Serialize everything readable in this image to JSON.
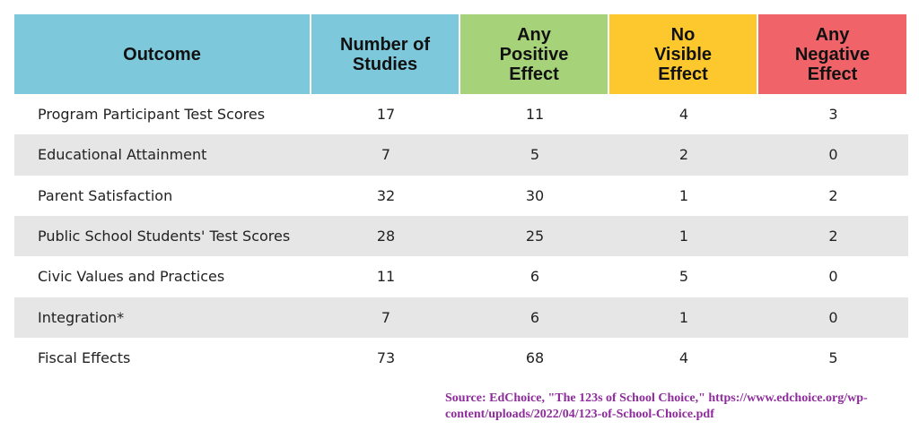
{
  "table": {
    "header": [
      [
        "Outcome"
      ],
      [
        "Number of",
        "Studies"
      ],
      [
        "Any",
        "Positive",
        "Effect"
      ],
      [
        "No",
        "Visible",
        "Effect"
      ],
      [
        "Any",
        "Negative",
        "Effect"
      ]
    ],
    "rows": [
      [
        "Program Participant Test Scores",
        17,
        11,
        4,
        3
      ],
      [
        "Educational Attainment",
        7,
        5,
        2,
        0
      ],
      [
        "Parent Satisfaction",
        32,
        30,
        1,
        2
      ],
      [
        "Public School Students' Test Scores",
        28,
        25,
        1,
        2
      ],
      [
        "Civic Values and Practices",
        11,
        6,
        5,
        0
      ],
      [
        "Integration*",
        7,
        6,
        1,
        0
      ],
      [
        "Fiscal Effects",
        73,
        68,
        4,
        5
      ]
    ]
  },
  "source": [
    "Source: EdChoice, \"The 123s of School Choice,\" https://www.edchoice.org/wp-",
    "content/uploads/2022/04/123-of-School-Choice.pdf"
  ]
}
